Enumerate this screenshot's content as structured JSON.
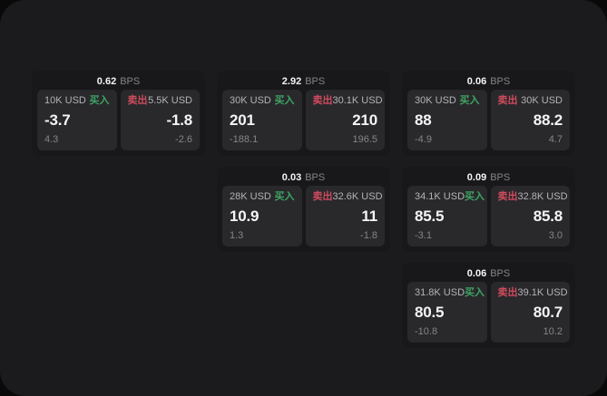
{
  "unit_label": "BPS",
  "side_labels": {
    "buy": "买入",
    "sell": "卖出"
  },
  "colors": {
    "page_bg": "#09090a",
    "panel_bg": "#1b1b1d",
    "card_bg": "#18181a",
    "cell_bg": "#29292b",
    "buy": "#3fa463",
    "sell": "#cf4b5c",
    "value_text": "#f5f5f7",
    "label_text": "#b3b3b8",
    "muted_text": "#85858a"
  },
  "cards": [
    {
      "grid": {
        "col": 1,
        "row": 1
      },
      "bps": "0.62",
      "buy": {
        "size": "10K USD",
        "value": "-3.7",
        "change": "4.3"
      },
      "sell": {
        "size": "5.5K USD",
        "value": "-1.8",
        "change": "-2.6"
      }
    },
    {
      "grid": {
        "col": 2,
        "row": 1
      },
      "bps": "2.92",
      "buy": {
        "size": "30K USD",
        "value": "201",
        "change": "-188.1"
      },
      "sell": {
        "size": "30.1K USD",
        "value": "210",
        "change": "196.5"
      }
    },
    {
      "grid": {
        "col": 3,
        "row": 1
      },
      "bps": "0.06",
      "buy": {
        "size": "30K USD",
        "value": "88",
        "change": "-4.9"
      },
      "sell": {
        "size": "30K USD",
        "value": "88.2",
        "change": "4.7"
      }
    },
    {
      "grid": {
        "col": 2,
        "row": 2
      },
      "bps": "0.03",
      "buy": {
        "size": "28K USD",
        "value": "10.9",
        "change": "1.3"
      },
      "sell": {
        "size": "32.6K USD",
        "value": "11",
        "change": "-1.8"
      }
    },
    {
      "grid": {
        "col": 3,
        "row": 2
      },
      "bps": "0.09",
      "buy": {
        "size": "34.1K USD",
        "value": "85.5",
        "change": "-3.1"
      },
      "sell": {
        "size": "32.8K USD",
        "value": "85.8",
        "change": "3.0"
      }
    },
    {
      "grid": {
        "col": 3,
        "row": 3
      },
      "bps": "0.06",
      "buy": {
        "size": "31.8K USD",
        "value": "80.5",
        "change": "-10.8"
      },
      "sell": {
        "size": "39.1K USD",
        "value": "80.7",
        "change": "10.2"
      }
    }
  ]
}
